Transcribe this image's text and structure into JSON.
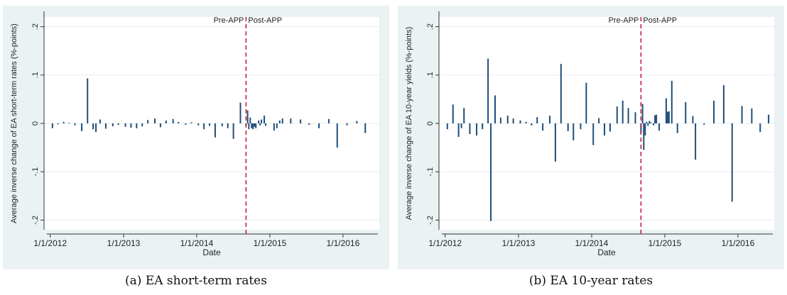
{
  "chart_data": [
    {
      "type": "bar",
      "caption": "(a) EA short-term rates",
      "xlabel": "Date",
      "ylabel": "Average inverse change of EA short-term rates (%-points)",
      "ylim": [
        -0.22,
        0.22
      ],
      "y_ticks": [
        -0.2,
        -0.1,
        0,
        0.1,
        0.2
      ],
      "y_tick_labels": [
        "-.2",
        "-.1",
        "0",
        ".1",
        ".2"
      ],
      "x_range": [
        "2011-12-01",
        "2016-06-30"
      ],
      "x_ticks": [
        "2012-01-01",
        "2013-01-01",
        "2014-01-01",
        "2015-01-01",
        "2016-01-01"
      ],
      "x_tick_labels": [
        "1/1/2012",
        "1/1/2013",
        "1/1/2014",
        "1/1/2015",
        "1/1/2016"
      ],
      "grid": true,
      "reference_line": {
        "date": "2014-09-04",
        "label_left": "Pre-APP",
        "label_right": "Post-APP",
        "color": "#c0143c"
      },
      "bar_color": "#1f4e79",
      "points": [
        [
          "2012-01-12",
          -0.01
        ],
        [
          "2012-02-09",
          -0.002
        ],
        [
          "2012-03-08",
          0.003
        ],
        [
          "2012-04-04",
          0.001
        ],
        [
          "2012-05-03",
          -0.004
        ],
        [
          "2012-06-06",
          -0.016
        ],
        [
          "2012-07-05",
          0.093
        ],
        [
          "2012-08-02",
          -0.012
        ],
        [
          "2012-08-16",
          -0.018
        ],
        [
          "2012-09-06",
          0.008
        ],
        [
          "2012-10-04",
          -0.011
        ],
        [
          "2012-11-08",
          -0.006
        ],
        [
          "2012-12-06",
          -0.003
        ],
        [
          "2013-01-10",
          -0.007
        ],
        [
          "2013-02-07",
          -0.009
        ],
        [
          "2013-03-07",
          -0.01
        ],
        [
          "2013-04-04",
          -0.006
        ],
        [
          "2013-05-02",
          0.007
        ],
        [
          "2013-06-06",
          0.01
        ],
        [
          "2013-07-04",
          -0.008
        ],
        [
          "2013-08-01",
          0.006
        ],
        [
          "2013-09-05",
          0.009
        ],
        [
          "2013-10-02",
          0.003
        ],
        [
          "2013-11-07",
          -0.003
        ],
        [
          "2013-12-05",
          0.002
        ],
        [
          "2014-01-09",
          -0.004
        ],
        [
          "2014-02-06",
          -0.012
        ],
        [
          "2014-03-06",
          -0.005
        ],
        [
          "2014-04-03",
          -0.029
        ],
        [
          "2014-05-08",
          -0.006
        ],
        [
          "2014-06-05",
          -0.01
        ],
        [
          "2014-07-03",
          -0.032
        ],
        [
          "2014-08-07",
          0.043
        ],
        [
          "2014-09-04",
          -0.005
        ],
        [
          "2014-09-12",
          0.027
        ],
        [
          "2014-09-18",
          -0.012
        ],
        [
          "2014-09-25",
          0.012
        ],
        [
          "2014-10-02",
          -0.01
        ],
        [
          "2014-10-09",
          -0.012
        ],
        [
          "2014-10-16",
          -0.007
        ],
        [
          "2014-10-23",
          -0.01
        ],
        [
          "2014-11-06",
          0.006
        ],
        [
          "2014-11-13",
          -0.004
        ],
        [
          "2014-11-20",
          0.008
        ],
        [
          "2014-12-04",
          0.016
        ],
        [
          "2014-12-11",
          -0.005
        ],
        [
          "2015-01-22",
          -0.015
        ],
        [
          "2015-02-05",
          -0.01
        ],
        [
          "2015-02-19",
          0.006
        ],
        [
          "2015-03-05",
          0.01
        ],
        [
          "2015-04-15",
          0.01
        ],
        [
          "2015-06-03",
          0.008
        ],
        [
          "2015-07-16",
          -0.003
        ],
        [
          "2015-09-03",
          -0.01
        ],
        [
          "2015-10-22",
          0.009
        ],
        [
          "2015-12-03",
          -0.05
        ],
        [
          "2016-01-21",
          -0.004
        ],
        [
          "2016-03-10",
          0.005
        ],
        [
          "2016-04-21",
          -0.02
        ]
      ]
    },
    {
      "type": "bar",
      "caption": "(b) EA 10-year rates",
      "xlabel": "Date",
      "ylabel": "Average inverse change of EA 10-year yields (%-points)",
      "ylim": [
        -0.22,
        0.22
      ],
      "y_ticks": [
        -0.2,
        -0.1,
        0,
        0.1,
        0.2
      ],
      "y_tick_labels": [
        "-.2",
        "-.1",
        "0",
        ".1",
        ".2"
      ],
      "x_range": [
        "2011-12-01",
        "2016-06-30"
      ],
      "x_ticks": [
        "2012-01-01",
        "2013-01-01",
        "2014-01-01",
        "2015-01-01",
        "2016-01-01"
      ],
      "x_tick_labels": [
        "1/1/2012",
        "1/1/2013",
        "1/1/2014",
        "1/1/2015",
        "1/1/2016"
      ],
      "grid": true,
      "reference_line": {
        "date": "2014-09-04",
        "label_left": "Pre-APP",
        "label_right": "Post-APP",
        "color": "#c0143c"
      },
      "bar_color": "#1f4e79",
      "points": [
        [
          "2012-01-12",
          -0.012
        ],
        [
          "2012-02-09",
          0.039
        ],
        [
          "2012-03-08",
          -0.028
        ],
        [
          "2012-03-22",
          -0.01
        ],
        [
          "2012-04-04",
          0.032
        ],
        [
          "2012-05-03",
          -0.022
        ],
        [
          "2012-06-06",
          -0.025
        ],
        [
          "2012-07-05",
          -0.012
        ],
        [
          "2012-08-02",
          0.134
        ],
        [
          "2012-08-16",
          -0.202
        ],
        [
          "2012-09-06",
          0.058
        ],
        [
          "2012-10-04",
          0.012
        ],
        [
          "2012-11-08",
          0.016
        ],
        [
          "2012-12-06",
          0.01
        ],
        [
          "2013-01-10",
          0.006
        ],
        [
          "2013-02-07",
          0.003
        ],
        [
          "2013-03-07",
          -0.004
        ],
        [
          "2013-04-04",
          0.013
        ],
        [
          "2013-05-02",
          -0.015
        ],
        [
          "2013-06-06",
          0.016
        ],
        [
          "2013-07-04",
          -0.079
        ],
        [
          "2013-08-01",
          0.123
        ],
        [
          "2013-09-05",
          -0.016
        ],
        [
          "2013-10-02",
          -0.035
        ],
        [
          "2013-11-07",
          -0.012
        ],
        [
          "2013-12-05",
          0.084
        ],
        [
          "2014-01-09",
          -0.045
        ],
        [
          "2014-02-06",
          0.011
        ],
        [
          "2014-03-06",
          -0.025
        ],
        [
          "2014-04-03",
          -0.017
        ],
        [
          "2014-05-08",
          0.035
        ],
        [
          "2014-06-05",
          0.047
        ],
        [
          "2014-07-03",
          0.032
        ],
        [
          "2014-08-07",
          0.023
        ],
        [
          "2014-09-04",
          -0.02
        ],
        [
          "2014-09-12",
          0.04
        ],
        [
          "2014-09-18",
          -0.055
        ],
        [
          "2014-09-25",
          -0.025
        ],
        [
          "2014-10-02",
          0.003
        ],
        [
          "2014-10-09",
          -0.005
        ],
        [
          "2014-10-16",
          0.005
        ],
        [
          "2014-10-23",
          0.002
        ],
        [
          "2014-11-06",
          -0.004
        ],
        [
          "2014-11-13",
          0.017
        ],
        [
          "2014-11-20",
          0.018
        ],
        [
          "2014-12-04",
          -0.015
        ],
        [
          "2015-01-08",
          0.052
        ],
        [
          "2015-01-15",
          0.024
        ],
        [
          "2015-01-22",
          0.025
        ],
        [
          "2015-02-05",
          0.088
        ],
        [
          "2015-03-05",
          -0.02
        ],
        [
          "2015-04-15",
          0.044
        ],
        [
          "2015-05-21",
          0.015
        ],
        [
          "2015-06-03",
          -0.075
        ],
        [
          "2015-07-16",
          -0.003
        ],
        [
          "2015-09-03",
          0.047
        ],
        [
          "2015-10-22",
          0.079
        ],
        [
          "2015-12-03",
          -0.162
        ],
        [
          "2016-01-21",
          0.036
        ],
        [
          "2016-03-10",
          0.031
        ],
        [
          "2016-04-21",
          -0.018
        ],
        [
          "2016-06-02",
          0.018
        ]
      ]
    }
  ]
}
